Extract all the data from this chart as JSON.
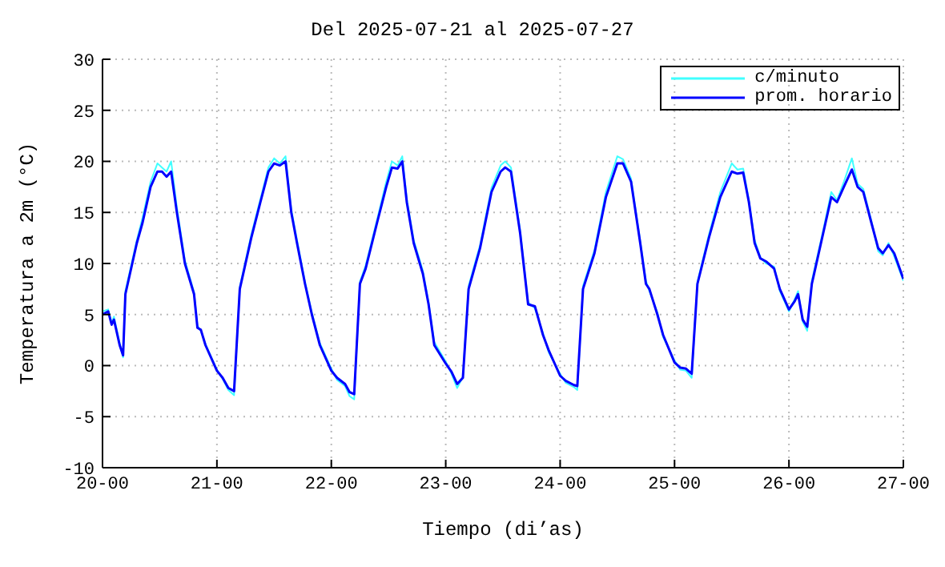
{
  "chart_data": {
    "type": "line",
    "title": "Del 2025-07-21 al 2025-07-27",
    "xlabel": "Tiempo (di’as)",
    "ylabel": "Temperatura a 2m (°C)",
    "x": [
      "2025-07-20T00:00",
      "2025-07-20T01:12",
      "2025-07-20T01:55",
      "2025-07-20T02:24",
      "2025-07-20T03:36",
      "2025-07-20T04:19",
      "2025-07-20T04:48",
      "2025-07-20T07:12",
      "2025-07-20T08:24",
      "2025-07-20T10:05",
      "2025-07-20T11:31",
      "2025-07-20T12:29",
      "2025-07-20T13:26",
      "2025-07-20T14:24",
      "2025-07-20T15:36",
      "2025-07-20T17:17",
      "2025-07-20T19:12",
      "2025-07-20T19:55",
      "2025-07-20T20:38",
      "2025-07-20T21:36",
      "2025-07-21T00:00",
      "2025-07-21T01:12",
      "2025-07-21T02:24",
      "2025-07-21T03:36",
      "2025-07-21T04:48",
      "2025-07-21T07:12",
      "2025-07-21T09:07",
      "2025-07-21T10:48",
      "2025-07-21T12:00",
      "2025-07-21T13:12",
      "2025-07-21T14:24",
      "2025-07-21T15:36",
      "2025-07-21T16:48",
      "2025-07-21T18:29",
      "2025-07-21T19:55",
      "2025-07-21T21:36",
      "2025-07-22T00:00",
      "2025-07-22T01:12",
      "2025-07-22T02:53",
      "2025-07-22T03:50",
      "2025-07-22T04:48",
      "2025-07-22T06:00",
      "2025-07-22T07:12",
      "2025-07-22T09:36",
      "2025-07-22T11:31",
      "2025-07-22T12:43",
      "2025-07-22T13:55",
      "2025-07-22T14:53",
      "2025-07-22T15:50",
      "2025-07-22T17:17",
      "2025-07-22T19:12",
      "2025-07-22T20:24",
      "2025-07-22T21:36",
      "2025-07-23T00:00",
      "2025-07-23T01:12",
      "2025-07-23T02:24",
      "2025-07-23T03:36",
      "2025-07-23T04:48",
      "2025-07-23T07:12",
      "2025-07-23T09:36",
      "2025-07-23T11:31",
      "2025-07-23T12:29",
      "2025-07-23T13:41",
      "2025-07-23T15:36",
      "2025-07-23T17:17",
      "2025-07-23T18:43",
      "2025-07-23T20:24",
      "2025-07-23T21:36",
      "2025-07-24T00:00",
      "2025-07-24T01:12",
      "2025-07-24T02:53",
      "2025-07-24T03:36",
      "2025-07-24T04:48",
      "2025-07-24T07:12",
      "2025-07-24T09:36",
      "2025-07-24T12:00",
      "2025-07-24T13:12",
      "2025-07-24T14:53",
      "2025-07-24T16:48",
      "2025-07-24T18:00",
      "2025-07-24T18:43",
      "2025-07-24T20:24",
      "2025-07-24T21:36",
      "2025-07-25T00:00",
      "2025-07-25T01:12",
      "2025-07-25T02:24",
      "2025-07-25T03:36",
      "2025-07-25T04:48",
      "2025-07-25T07:12",
      "2025-07-25T09:36",
      "2025-07-25T12:00",
      "2025-07-25T13:12",
      "2025-07-25T14:24",
      "2025-07-25T15:36",
      "2025-07-25T16:48",
      "2025-07-25T18:00",
      "2025-07-25T19:12",
      "2025-07-25T20:53",
      "2025-07-25T22:05",
      "2025-07-26T00:00",
      "2025-07-26T01:12",
      "2025-07-26T01:55",
      "2025-07-26T02:53",
      "2025-07-26T03:50",
      "2025-07-26T04:48",
      "2025-07-26T07:12",
      "2025-07-26T08:53",
      "2025-07-26T10:05",
      "2025-07-26T11:31",
      "2025-07-26T13:12",
      "2025-07-26T14:24",
      "2025-07-26T15:36",
      "2025-07-26T17:17",
      "2025-07-26T18:43",
      "2025-07-26T19:41",
      "2025-07-26T20:53",
      "2025-07-26T22:05",
      "2025-07-27T00:00"
    ],
    "series": [
      {
        "name": "c/minuto",
        "color": "#40ffff",
        "values": [
          5.3,
          5.5,
          4.2,
          4.8,
          2.2,
          0.8,
          7.3,
          12.3,
          14.5,
          18,
          19.8,
          19.4,
          19,
          20,
          15.5,
          10.3,
          7.2,
          3.9,
          3.4,
          2.1,
          -0.4,
          -1.3,
          -2.4,
          -2.9,
          7.7,
          12.8,
          16.3,
          19.4,
          20.3,
          19.8,
          20.5,
          15.3,
          12.3,
          8.2,
          5.2,
          2.2,
          -0.3,
          -1.4,
          -2,
          -3,
          -3.3,
          8.2,
          9.8,
          14.3,
          18,
          20,
          19.6,
          20.5,
          16.3,
          12.3,
          9.3,
          6.2,
          2.3,
          0.4,
          -0.8,
          -2.2,
          -1.1,
          7.8,
          11.8,
          17.4,
          19.6,
          20,
          19.4,
          13.3,
          6.2,
          5.6,
          3.2,
          1.3,
          -0.8,
          -1.7,
          -2.1,
          -2.4,
          7.8,
          11.3,
          17,
          20.5,
          20.2,
          18.3,
          12.2,
          8.3,
          7.3,
          5.2,
          2.8,
          0.5,
          -0.4,
          -0.5,
          -1.2,
          8.2,
          12.8,
          17,
          19.8,
          19.2,
          19.3,
          16.2,
          12.3,
          10.6,
          10,
          9.7,
          7.3,
          5.3,
          6.5,
          7.3,
          4.3,
          3.4,
          8.3,
          13.3,
          17,
          16.2,
          18,
          20.3,
          17.8,
          17.3,
          14.2,
          11.2,
          10.8,
          12,
          10.7,
          8.3
        ]
      },
      {
        "name": "prom. horario",
        "color": "#0000ff",
        "values": [
          5,
          5.3,
          4,
          4.5,
          2,
          1,
          7,
          12,
          14,
          17.5,
          19,
          19,
          18.5,
          19,
          15,
          10,
          7,
          3.7,
          3.5,
          2,
          -0.5,
          -1.2,
          -2.2,
          -2.5,
          7.5,
          12.5,
          16,
          19,
          19.8,
          19.6,
          20,
          15,
          12,
          8,
          5,
          2,
          -0.5,
          -1.2,
          -1.8,
          -2.6,
          -2.8,
          8,
          9.5,
          14,
          17.5,
          19.4,
          19.3,
          20,
          16,
          12,
          9,
          6,
          2,
          0.2,
          -0.6,
          -1.8,
          -1.2,
          7.5,
          11.5,
          17,
          19,
          19.4,
          19,
          13,
          6,
          5.8,
          3,
          1.5,
          -1,
          -1.5,
          -1.9,
          -2,
          7.5,
          11,
          16.5,
          19.8,
          19.8,
          18,
          12,
          8,
          7.5,
          5,
          3,
          0.3,
          -0.2,
          -0.3,
          -0.8,
          8,
          12.5,
          16.5,
          19,
          18.8,
          18.9,
          16,
          12,
          10.5,
          10.2,
          9.5,
          7.5,
          5.5,
          6.3,
          7,
          4.5,
          3.8,
          8,
          13,
          16.5,
          16,
          17.5,
          19.2,
          17.5,
          17,
          14,
          11.5,
          11,
          11.8,
          11,
          8.5
        ]
      }
    ],
    "xlim": [
      "2025-07-20T00:00",
      "2025-07-27T00:00"
    ],
    "xticks": [
      {
        "value": "2025-07-20T00:00",
        "label": "20-00"
      },
      {
        "value": "2025-07-21T00:00",
        "label": "21-00"
      },
      {
        "value": "2025-07-22T00:00",
        "label": "22-00"
      },
      {
        "value": "2025-07-23T00:00",
        "label": "23-00"
      },
      {
        "value": "2025-07-24T00:00",
        "label": "24-00"
      },
      {
        "value": "2025-07-25T00:00",
        "label": "25-00"
      },
      {
        "value": "2025-07-26T00:00",
        "label": "26-00"
      },
      {
        "value": "2025-07-27T00:00",
        "label": "27-00"
      }
    ],
    "ylim": [
      -10,
      30
    ],
    "yticks": [
      -10,
      -5,
      0,
      5,
      10,
      15,
      20,
      25,
      30
    ],
    "grid": true,
    "legend": "top right",
    "marker": "none",
    "line_style": "solid"
  }
}
